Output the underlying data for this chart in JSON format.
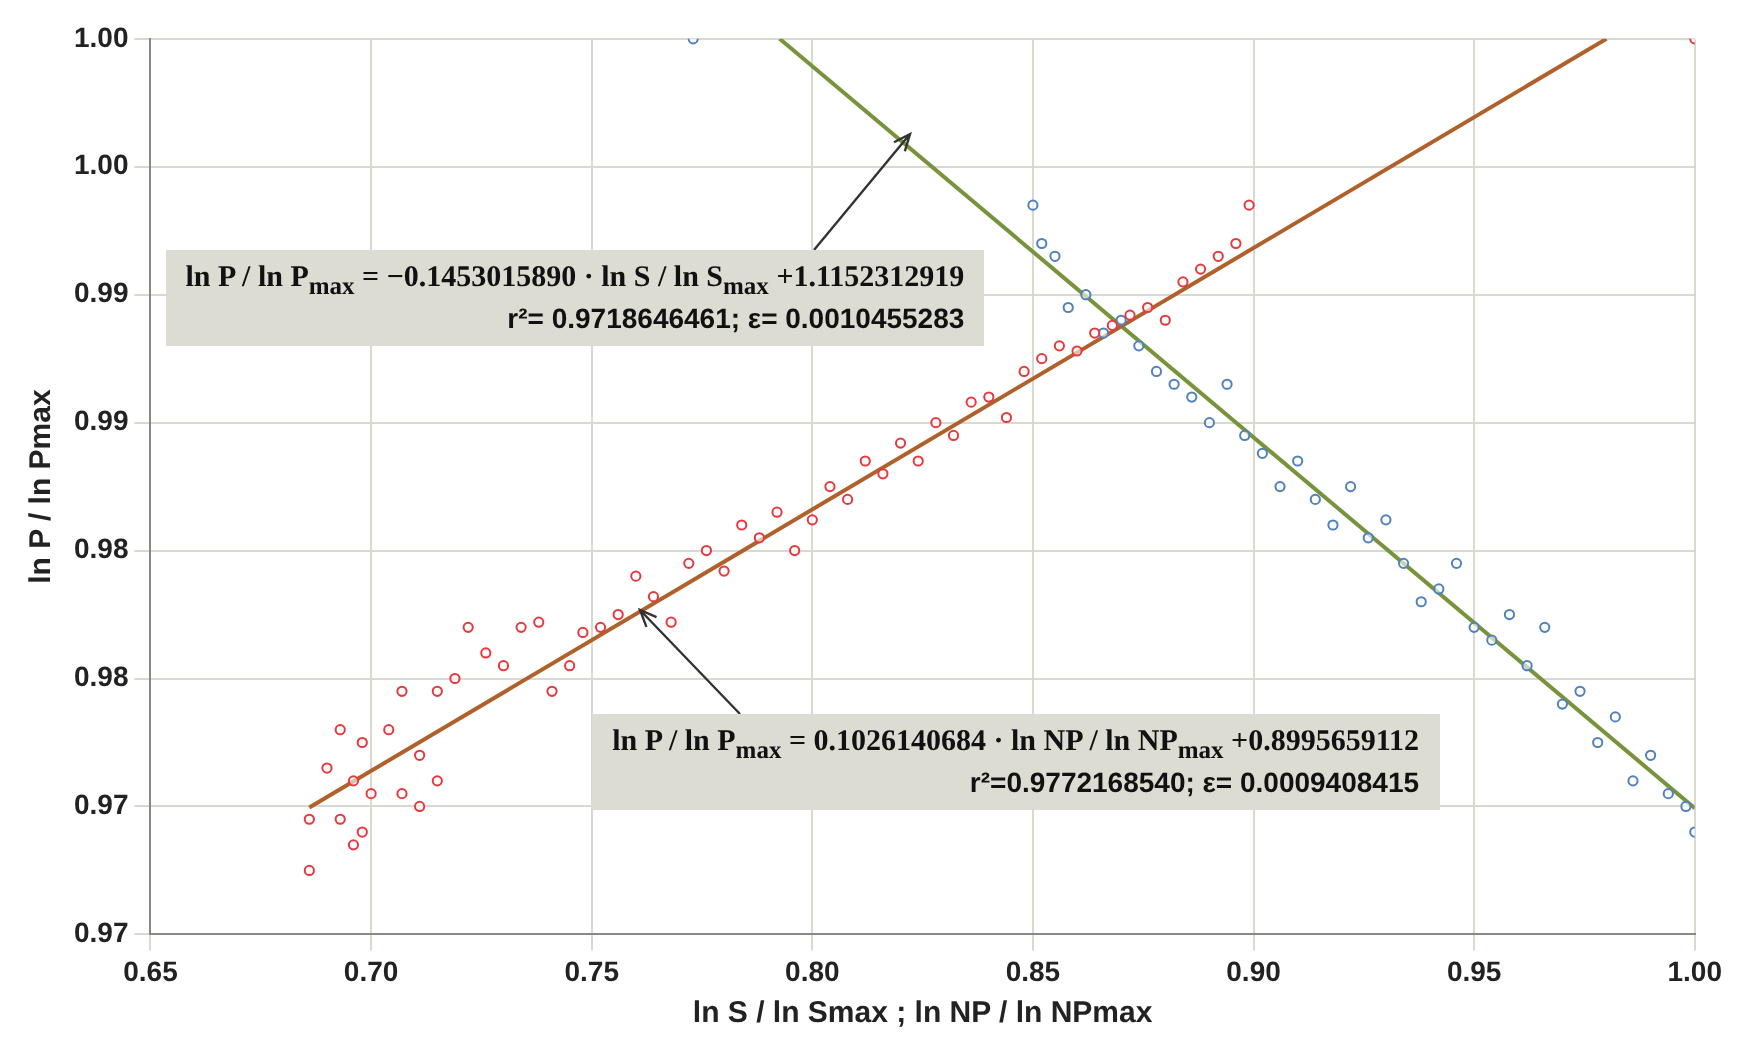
{
  "chart_data": {
    "type": "scatter",
    "xlabel": "ln S / ln Smax ; ln NP / ln NPmax",
    "ylabel": "ln P / ln Pmax",
    "xlim": [
      0.65,
      1.0
    ],
    "xticks": [
      {
        "value": 0.65,
        "label": "0.65"
      },
      {
        "value": 0.7,
        "label": "0.70"
      },
      {
        "value": 0.75,
        "label": "0.75"
      },
      {
        "value": 0.8,
        "label": "0.80"
      },
      {
        "value": 0.85,
        "label": "0.85"
      },
      {
        "value": 0.9,
        "label": "0.90"
      },
      {
        "value": 0.95,
        "label": "0.95"
      },
      {
        "value": 1.0,
        "label": "1.00"
      }
    ],
    "ylim": [
      0.965,
      1.0
    ],
    "yticks": [
      {
        "value": 0.965,
        "label": "0.97"
      },
      {
        "value": 0.97,
        "label": "0.97"
      },
      {
        "value": 0.975,
        "label": "0.98"
      },
      {
        "value": 0.98,
        "label": "0.98"
      },
      {
        "value": 0.985,
        "label": "0.99"
      },
      {
        "value": 0.99,
        "label": "0.99"
      },
      {
        "value": 0.995,
        "label": "1.00"
      },
      {
        "value": 1.0,
        "label": "1.00"
      }
    ],
    "grid": true,
    "legend": false,
    "marker": "circle",
    "series": [
      {
        "color": "#e8383d",
        "x": [
          0.686,
          0.686,
          0.69,
          0.693,
          0.693,
          0.696,
          0.696,
          0.698,
          0.698,
          0.7,
          0.704,
          0.707,
          0.707,
          0.711,
          0.711,
          0.715,
          0.715,
          0.719,
          0.722,
          0.726,
          0.73,
          0.734,
          0.738,
          0.741,
          0.745,
          0.748,
          0.752,
          0.756,
          0.76,
          0.764,
          0.768,
          0.772,
          0.776,
          0.78,
          0.784,
          0.788,
          0.792,
          0.796,
          0.8,
          0.804,
          0.808,
          0.812,
          0.816,
          0.82,
          0.824,
          0.828,
          0.832,
          0.836,
          0.84,
          0.844,
          0.848,
          0.852,
          0.856,
          0.86,
          0.864,
          0.868,
          0.872,
          0.876,
          0.88,
          0.884,
          0.888,
          0.892,
          0.896,
          0.899,
          1.0
        ],
        "values": [
          0.9675,
          0.9695,
          0.9715,
          0.9695,
          0.973,
          0.971,
          0.9685,
          0.9725,
          0.969,
          0.9705,
          0.973,
          0.9745,
          0.9705,
          0.972,
          0.97,
          0.9745,
          0.971,
          0.975,
          0.977,
          0.976,
          0.9755,
          0.977,
          0.9772,
          0.9745,
          0.9755,
          0.9768,
          0.977,
          0.9775,
          0.979,
          0.9782,
          0.9772,
          0.9795,
          0.98,
          0.9792,
          0.981,
          0.9805,
          0.9815,
          0.98,
          0.9812,
          0.9825,
          0.982,
          0.9835,
          0.983,
          0.9842,
          0.9835,
          0.985,
          0.9845,
          0.9858,
          0.986,
          0.9852,
          0.987,
          0.9875,
          0.988,
          0.9878,
          0.9885,
          0.9888,
          0.9892,
          0.9895,
          0.989,
          0.9905,
          0.991,
          0.9915,
          0.992,
          0.9935,
          1.0
        ]
      },
      {
        "color": "#4f81bd",
        "x": [
          0.773,
          0.85,
          0.852,
          0.855,
          0.858,
          0.862,
          0.866,
          0.87,
          0.874,
          0.878,
          0.882,
          0.886,
          0.89,
          0.894,
          0.898,
          0.902,
          0.906,
          0.91,
          0.914,
          0.918,
          0.922,
          0.926,
          0.93,
          0.934,
          0.938,
          0.942,
          0.946,
          0.95,
          0.954,
          0.958,
          0.962,
          0.966,
          0.97,
          0.974,
          0.978,
          0.982,
          0.986,
          0.99,
          0.994,
          0.998,
          1.0
        ],
        "values": [
          1.0,
          0.9935,
          0.992,
          0.9915,
          0.9895,
          0.99,
          0.9885,
          0.989,
          0.988,
          0.987,
          0.9865,
          0.986,
          0.985,
          0.9865,
          0.9845,
          0.9838,
          0.9825,
          0.9835,
          0.982,
          0.981,
          0.9825,
          0.9805,
          0.9812,
          0.9795,
          0.978,
          0.9785,
          0.9795,
          0.977,
          0.9765,
          0.9775,
          0.9755,
          0.977,
          0.974,
          0.9745,
          0.9725,
          0.9735,
          0.971,
          0.972,
          0.9705,
          0.97,
          0.969
        ]
      },
      {
        "type": "line",
        "marker": "none",
        "color": "#b0602a",
        "x": [
          0.686,
          0.98
        ],
        "values": [
          0.96996,
          1.0
        ]
      },
      {
        "type": "line",
        "marker": "none",
        "color": "#77933c",
        "x": [
          0.7926,
          1.0
        ],
        "values": [
          1.0,
          0.96993
        ]
      }
    ],
    "annotations": [
      {
        "text": "ln P / ln P$_{max}$ = −0.1453015890 · ln S / ln S$_{max}$ +1.1152312919\nr²= 0.9718646461;  ε=  0.0010455283",
        "x": 0.822,
        "y": 0.9963
      },
      {
        "text": "ln P / ln P$_{max}$ = 0.1026140684 · ln NP / ln NP$_{max}$ +0.8995659112\nr²=0.9772168540; ε= 0.0009408415",
        "x": 0.761,
        "y": 0.97766
      }
    ]
  }
}
